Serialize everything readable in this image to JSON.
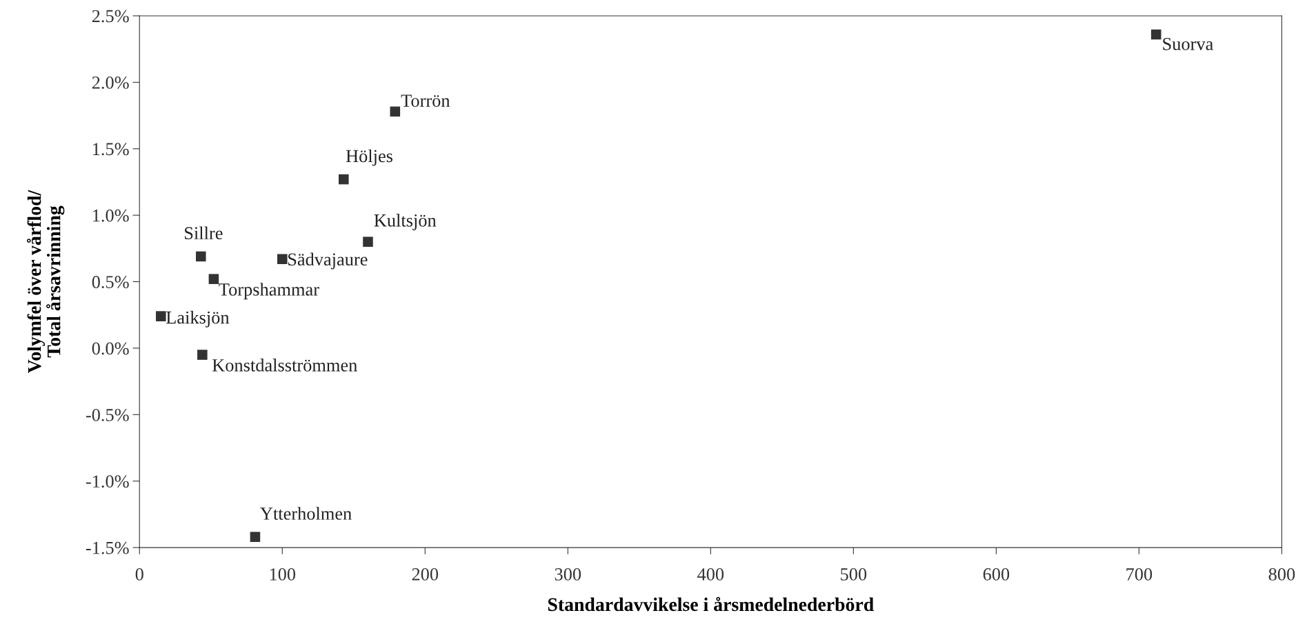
{
  "chart_data": {
    "type": "scatter",
    "xlabel": "Standardavvikelse i årsmedelnederbörd",
    "ylabel": "Volymfel över vårflod/\nTotal årsavrinning",
    "x": [
      712,
      179,
      143,
      160,
      43,
      100,
      52,
      15,
      44,
      81
    ],
    "series": [
      {
        "color": "#333333",
        "values": [
          2.36,
          1.78,
          1.27,
          0.8,
          0.69,
          0.67,
          0.52,
          0.24,
          -0.05,
          -1.42
        ]
      }
    ],
    "annotations": [
      {
        "text": "Suorva",
        "x": 712,
        "y": 2.36
      },
      {
        "text": "Torrön",
        "x": 179,
        "y": 1.78
      },
      {
        "text": "Höljes",
        "x": 143,
        "y": 1.27
      },
      {
        "text": "Kultsjön",
        "x": 160,
        "y": 0.8
      },
      {
        "text": "Sillre",
        "x": 43,
        "y": 0.69
      },
      {
        "text": "Sädvajaure",
        "x": 100,
        "y": 0.67
      },
      {
        "text": "Torpshammar",
        "x": 52,
        "y": 0.52
      },
      {
        "text": "Laiksjön",
        "x": 15,
        "y": 0.24
      },
      {
        "text": "Konstdalsströmmen",
        "x": 44,
        "y": -0.05
      },
      {
        "text": "Ytterholmen",
        "x": 81,
        "y": -1.42
      }
    ],
    "xlim": [
      0,
      800
    ],
    "xticks": [
      0,
      100,
      200,
      300,
      400,
      500,
      600,
      700,
      800
    ],
    "ylim": [
      -1.5,
      2.5
    ],
    "yticks": [
      {
        "value": -1.5,
        "label": "-1.5%"
      },
      {
        "value": -1.0,
        "label": "-1.0%"
      },
      {
        "value": -0.5,
        "label": "-0.5%"
      },
      {
        "value": 0.0,
        "label": "0.0%"
      },
      {
        "value": 0.5,
        "label": "0.5%"
      },
      {
        "value": 1.0,
        "label": "1.0%"
      },
      {
        "value": 1.5,
        "label": "1.5%"
      },
      {
        "value": 2.0,
        "label": "2.0%"
      },
      {
        "value": 2.5,
        "label": "2.5%"
      }
    ],
    "marker": "square",
    "grid": false,
    "legend": false
  }
}
